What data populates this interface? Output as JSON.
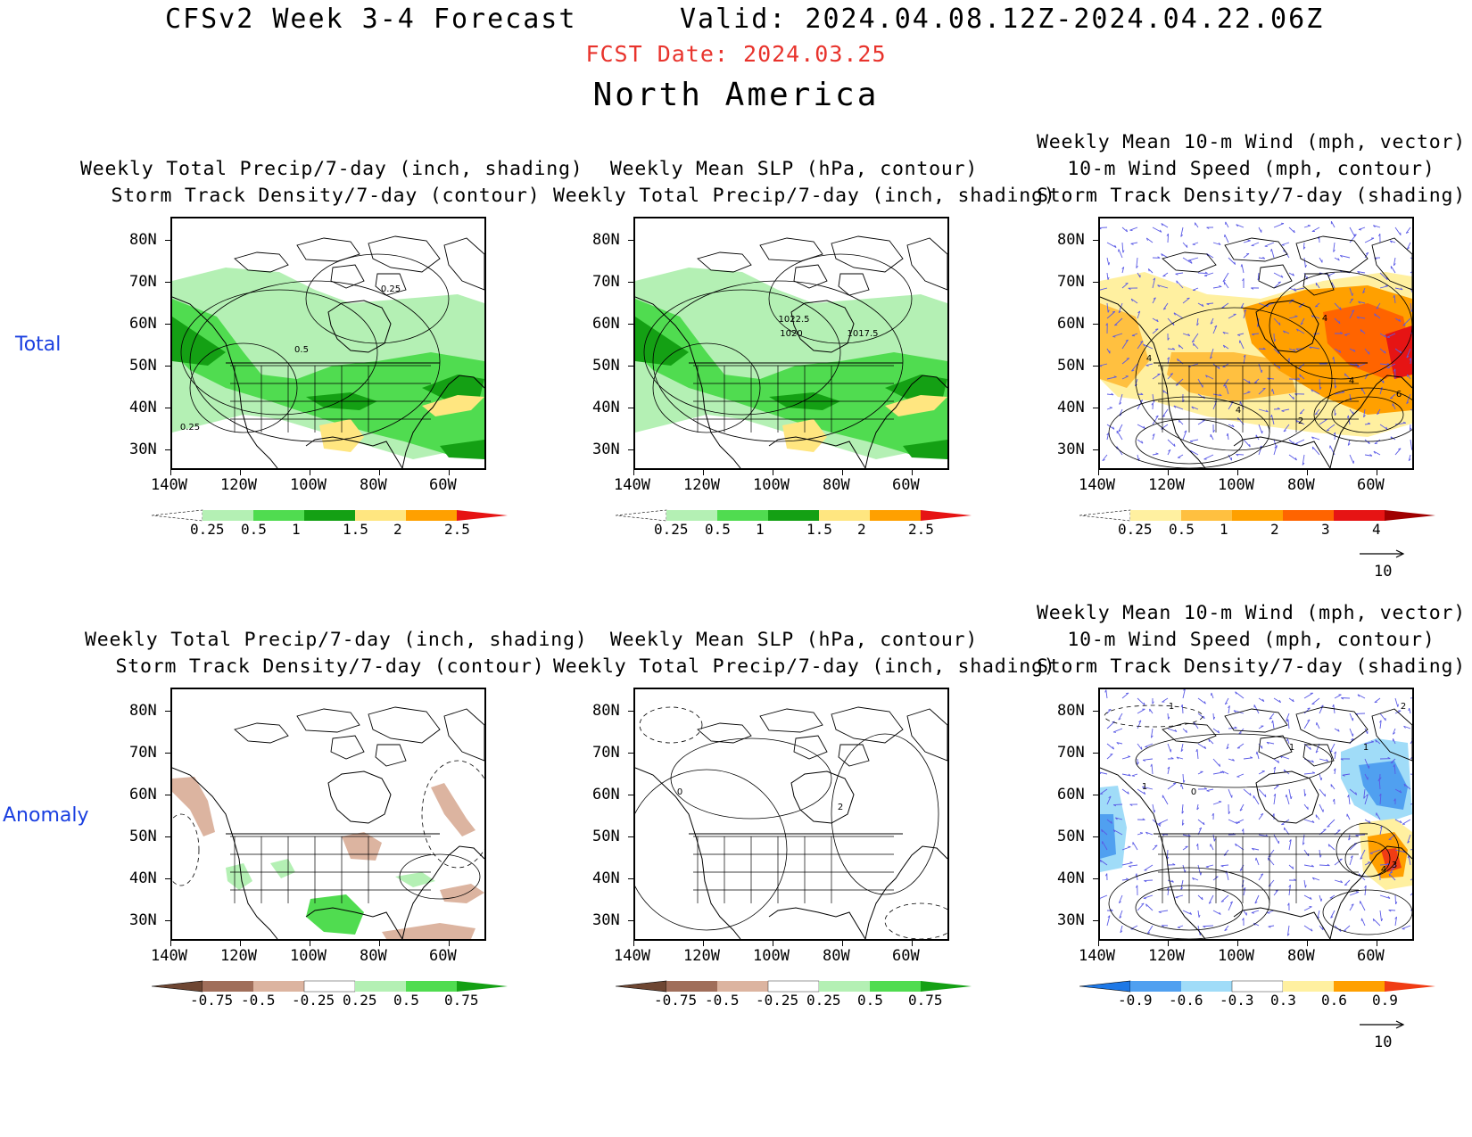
{
  "header": {
    "title": "CFSv2 Week 3-4 Forecast",
    "valid": "Valid: 2024.04.08.12Z-2024.04.22.06Z",
    "fcst_date": "FCST Date: 2024.03.25",
    "region": "North America"
  },
  "rows": {
    "total": "Total",
    "anomaly": "Anomaly"
  },
  "titles": {
    "p1": [
      "Weekly Total Precip/7-day (inch, shading)",
      "Storm Track Density/7-day (contour)"
    ],
    "p2": [
      "Weekly Mean SLP (hPa, contour)",
      "Weekly Total Precip/7-day (inch, shading)"
    ],
    "p3": [
      "Weekly Mean 10-m Wind (mph, vector)",
      "10-m Wind Speed (mph, contour)",
      "Storm Track Density/7-day (shading)"
    ]
  },
  "axes": {
    "lat_labels": [
      "80N",
      "70N",
      "60N",
      "50N",
      "40N",
      "30N"
    ],
    "lon_labels": [
      "140W",
      "120W",
      "100W",
      "80W",
      "60W"
    ]
  },
  "map_labels": {
    "total_precip": [
      "0.25",
      "0.5",
      "0.25"
    ],
    "total_slp": [
      "1022.5",
      "1020",
      "1017.5"
    ],
    "total_wind": [
      "4",
      "4",
      "4",
      "6",
      "4",
      "2"
    ],
    "anom_slp": [
      "0",
      "2"
    ],
    "anom_wind": [
      "1",
      "2",
      "1",
      "1",
      "0",
      "1",
      "4",
      "3"
    ]
  },
  "colorbars": {
    "precip_total": {
      "labels": [
        "0.25",
        "0.5",
        "1",
        "1.5",
        "2",
        "2.5"
      ],
      "colors": [
        "#ffffff",
        "#b4f0b4",
        "#50dc50",
        "#14a014",
        "#ffe680",
        "#ffa000",
        "#e61414"
      ]
    },
    "storm_total": {
      "labels": [
        "0.25",
        "0.5",
        "1",
        "2",
        "3",
        "4"
      ],
      "colors": [
        "#ffffff",
        "#fff0a0",
        "#ffc040",
        "#ffa000",
        "#ff6400",
        "#e61414",
        "#a00000"
      ]
    },
    "precip_anom": {
      "labels": [
        "-0.75",
        "-0.5",
        "-0.25",
        "0.25",
        "0.5",
        "0.75"
      ],
      "colors": [
        "#6e4632",
        "#a06e5a",
        "#dcb4a0",
        "#ffffff",
        "#b4f0b4",
        "#50dc50",
        "#14a014"
      ]
    },
    "storm_anom": {
      "labels": [
        "-0.9",
        "-0.6",
        "-0.3",
        "0.3",
        "0.6",
        "0.9"
      ],
      "colors": [
        "#1e78e6",
        "#50a0f0",
        "#a0dcf8",
        "#ffffff",
        "#fff0a0",
        "#ffa000",
        "#f03c14"
      ]
    }
  },
  "vector_ref": "10"
}
